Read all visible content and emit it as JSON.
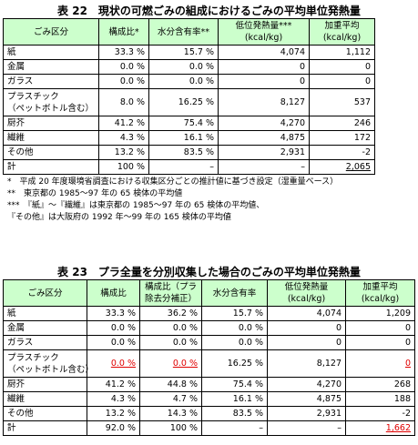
{
  "tables": [
    {
      "title": "表 22　現状の可燃ごみの組成におけるごみの平均単位発熱量",
      "header": [
        [
          "ごみ区分"
        ],
        [
          "構成比*"
        ],
        [
          "水分含有率**"
        ],
        [
          "低位発熱量***",
          "(kcal/kg)"
        ],
        [
          "加重平均",
          "(kcal/kg)"
        ]
      ],
      "rows": [
        [
          [
            "紙"
          ],
          "33.3 %",
          "15.7 %",
          "4,074",
          "1,112"
        ],
        [
          [
            "金属"
          ],
          "0.0 %",
          "0.0 %",
          "0",
          "0"
        ],
        [
          [
            "ガラス"
          ],
          "0.0 %",
          "0.0 %",
          "0",
          "0"
        ],
        [
          [
            "プラスチック",
            "（ペットボトル含む）"
          ],
          "8.0 %",
          "16.25 %",
          "8,127",
          "537"
        ],
        [
          [
            "厨芥"
          ],
          "41.2 %",
          "75.4 %",
          "4,270",
          "246"
        ],
        [
          [
            "繊維"
          ],
          "4.3 %",
          "16.1 %",
          "4,875",
          "172"
        ],
        [
          [
            "その他"
          ],
          "13.2 %",
          "83.5 %",
          "2,931",
          "-2"
        ],
        [
          [
            "計"
          ],
          "100 %",
          "–",
          "–",
          "2,065"
        ]
      ],
      "underlined_cells": [
        [
          7,
          4
        ]
      ],
      "red_cells": [],
      "notes": [
        "*　平成 20 年度環境省調査における収集区分ごとの推計値に基づき設定（湿重量ベース）",
        "**　東京都の 1985～97 年の 65 検体の平均値",
        "***　『紙』～『繊維』は東京都の 1985～97 年の 65 検体の平均値、",
        "『その他』は大阪府の 1992 年～99 年の 165 検体の平均値"
      ]
    },
    {
      "title": "表 23　プラ全量を分別収集した場合のごみの平均単位発熱量",
      "header": [
        [
          "ごみ区分"
        ],
        [
          "構成比"
        ],
        [
          "構成比（プラ",
          "除去分補正）"
        ],
        [
          "水分含有率"
        ],
        [
          "低位発熱量",
          "(kcal/kg)"
        ],
        [
          "加重平均",
          "(kcal/kg)"
        ]
      ],
      "rows": [
        [
          [
            "紙"
          ],
          "33.3 %",
          "36.2 %",
          "15.7 %",
          "4,074",
          "1,209"
        ],
        [
          [
            "金属"
          ],
          "0.0 %",
          "0.0 %",
          "0.0 %",
          "0",
          "0"
        ],
        [
          [
            "ガラス"
          ],
          "0.0 %",
          "0.0 %",
          "0.0 %",
          "0",
          "0"
        ],
        [
          [
            "プラスチック",
            "（ペットボトル含む）"
          ],
          "0.0 %",
          "0.0 %",
          "16.25 %",
          "8,127",
          "0"
        ],
        [
          [
            "厨芥"
          ],
          "41.2 %",
          "44.8 %",
          "75.4 %",
          "4,270",
          "268"
        ],
        [
          [
            "繊維"
          ],
          "4.3 %",
          "4.7 %",
          "16.1 %",
          "4,875",
          "188"
        ],
        [
          [
            "その他"
          ],
          "13.2 %",
          "14.3 %",
          "83.5 %",
          "2,931",
          "-2"
        ],
        [
          [
            "計"
          ],
          "92.0 %",
          "100 %",
          "–",
          "–",
          "1,662"
        ]
      ],
      "underlined_cells": [
        [
          3,
          1
        ],
        [
          3,
          2
        ],
        [
          3,
          5
        ],
        [
          7,
          5
        ]
      ],
      "red_cells": [
        [
          3,
          1
        ],
        [
          3,
          2
        ],
        [
          3,
          5
        ],
        [
          7,
          5
        ]
      ],
      "notes": []
    }
  ]
}
